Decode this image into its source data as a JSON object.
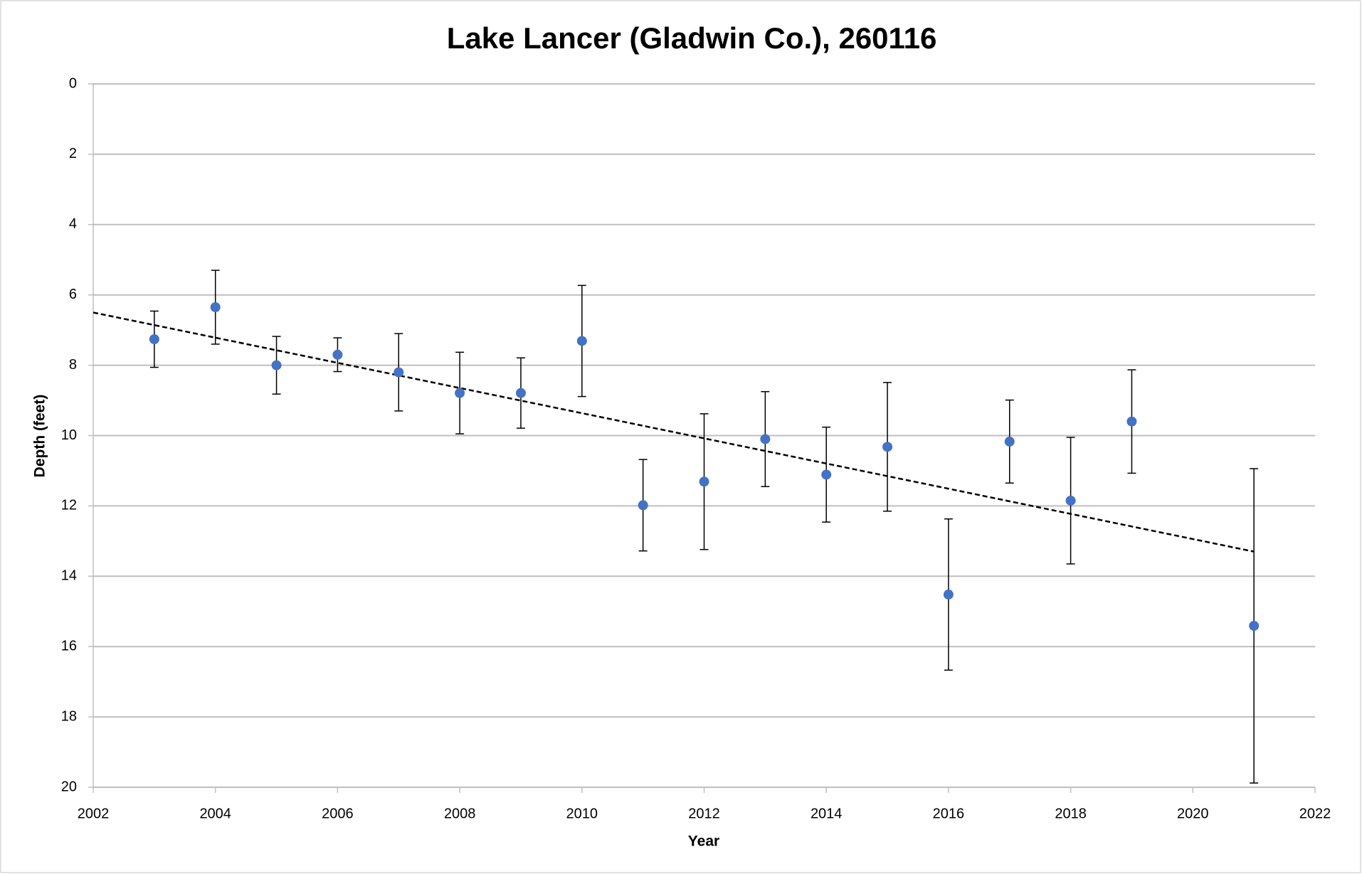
{
  "chart_data": {
    "type": "scatter",
    "title": "Lake Lancer (Gladwin Co.), 260116",
    "x_label": "Year",
    "y_label": "Depth (feet)",
    "x": [
      2003,
      2004,
      2005,
      2006,
      2007,
      2008,
      2009,
      2010,
      2011,
      2012,
      2013,
      2014,
      2015,
      2016,
      2017,
      2018,
      2019,
      2021
    ],
    "values": [
      7.26,
      6.35,
      8.0,
      7.7,
      8.2,
      8.79,
      8.79,
      7.31,
      11.98,
      11.31,
      10.1,
      11.11,
      10.32,
      14.52,
      10.17,
      11.85,
      9.6,
      15.41
    ],
    "errors": [
      0.8,
      1.05,
      0.82,
      0.48,
      1.1,
      1.16,
      1.0,
      1.58,
      1.3,
      1.93,
      1.35,
      1.35,
      1.83,
      2.15,
      1.18,
      1.8,
      1.47,
      4.47
    ],
    "color": "#4472c4",
    "trendline": {
      "x": [
        2002,
        2021
      ],
      "values": [
        6.5,
        13.3
      ],
      "color": "#000000",
      "dashed": true
    },
    "xlim": [
      2002,
      2022
    ],
    "xticks": [
      2002,
      2004,
      2006,
      2008,
      2010,
      2012,
      2014,
      2016,
      2018,
      2020,
      2022
    ],
    "ylim": [
      0,
      20
    ],
    "yticks": [
      0,
      2,
      4,
      6,
      8,
      10,
      12,
      14,
      16,
      18,
      20
    ],
    "y_inverted": true,
    "grid": true
  }
}
